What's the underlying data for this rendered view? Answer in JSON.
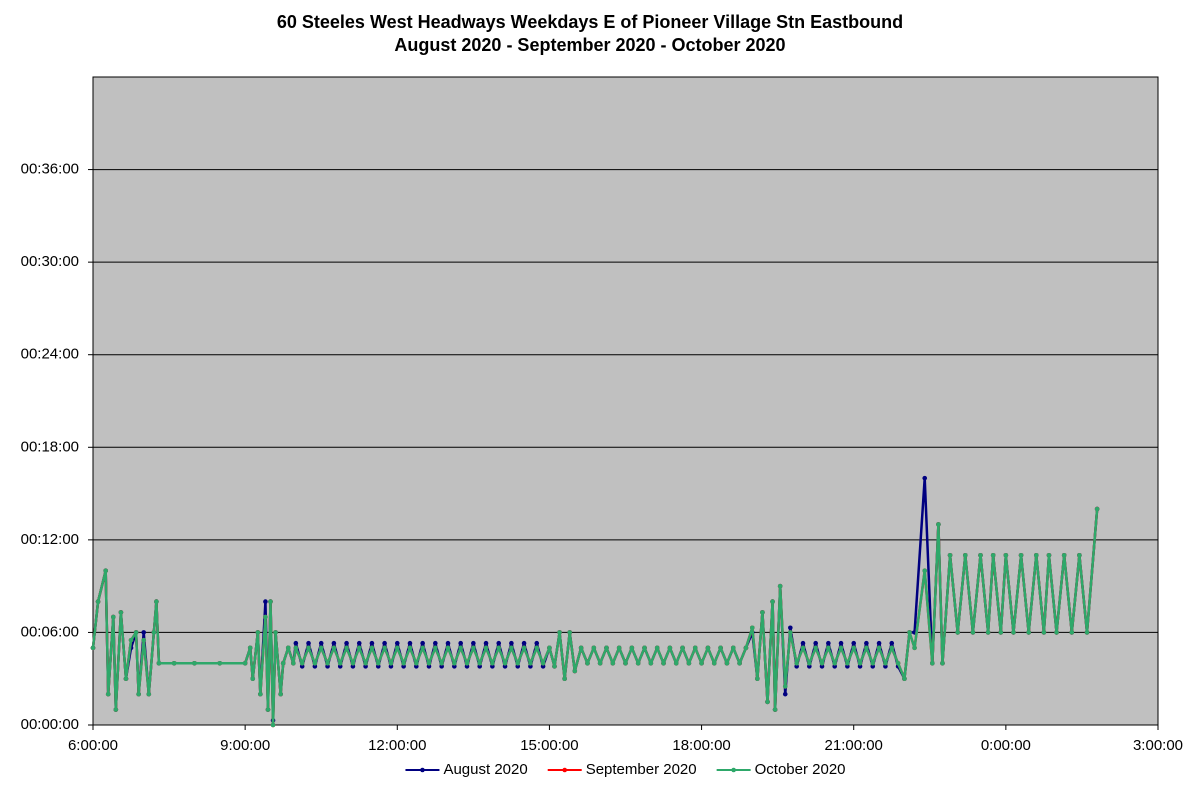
{
  "chart_data": {
    "type": "line",
    "title": "60 Steeles West Headways Weekdays E of Pioneer Village Stn Eastbound",
    "subtitle": "August 2020 - September 2020 - October 2020",
    "x": [
      6.0,
      6.1,
      6.25,
      6.3,
      6.4,
      6.45,
      6.55,
      6.65,
      6.75,
      6.85,
      6.9,
      7.0,
      7.1,
      7.2,
      7.25,
      7.3,
      7.6,
      8.0,
      8.5,
      9.0,
      9.1,
      9.15,
      9.25,
      9.3,
      9.4,
      9.45,
      9.5,
      9.55,
      9.6,
      9.7,
      9.75,
      9.85,
      9.95,
      10,
      10.125,
      10.25,
      10.375,
      10.5,
      10.625,
      10.75,
      10.875,
      11,
      11.125,
      11.25,
      11.375,
      11.5,
      11.625,
      11.75,
      11.875,
      12,
      12.125,
      12.25,
      12.375,
      12.5,
      12.625,
      12.75,
      12.875,
      13,
      13.125,
      13.25,
      13.375,
      13.5,
      13.625,
      13.75,
      13.875,
      14,
      14.125,
      14.25,
      14.375,
      14.5,
      14.625,
      14.75,
      14.875,
      15,
      15.1,
      15.2,
      15.3,
      15.4,
      15.5,
      15.625,
      15.75,
      15.875,
      16,
      16.125,
      16.25,
      16.375,
      16.5,
      16.625,
      16.75,
      16.875,
      17,
      17.125,
      17.25,
      17.375,
      17.5,
      17.625,
      17.75,
      17.875,
      18,
      18.125,
      18.25,
      18.375,
      18.5,
      18.625,
      18.75,
      18.875,
      19,
      19.1,
      19.2,
      19.3,
      19.4,
      19.45,
      19.55,
      19.65,
      19.75,
      19.875,
      20,
      20.125,
      20.25,
      20.375,
      20.5,
      20.625,
      20.75,
      20.875,
      21,
      21.125,
      21.25,
      21.375,
      21.5,
      21.625,
      21.75,
      21.875,
      22,
      22.1,
      22.2,
      22.4,
      22.55,
      22.67,
      22.75,
      22.9,
      23.05,
      23.2,
      23.35,
      23.5,
      23.65,
      23.75,
      23.9,
      24,
      24.15,
      24.3,
      24.45,
      24.6,
      24.75,
      24.85,
      25,
      25.15,
      25.3,
      25.45,
      25.6,
      25.8
    ],
    "series": [
      {
        "name": "August 2020",
        "color": "#000080",
        "values": [
          5,
          8,
          10,
          2,
          7,
          1,
          7.3,
          3,
          5,
          6,
          2,
          6,
          2,
          6,
          8,
          4,
          4,
          4,
          4,
          4,
          5,
          3,
          6,
          2,
          8,
          1,
          8,
          0.3,
          6,
          2,
          4,
          5,
          4,
          5.3,
          3.8,
          5.3,
          3.8,
          5.3,
          3.8,
          5.3,
          3.8,
          5.3,
          3.8,
          5.3,
          3.8,
          5.3,
          3.8,
          5.3,
          3.8,
          5.3,
          3.8,
          5.3,
          3.8,
          5.3,
          3.8,
          5.3,
          3.8,
          5.3,
          3.8,
          5.3,
          3.8,
          5.3,
          3.8,
          5.3,
          3.8,
          5.3,
          3.8,
          5.3,
          3.8,
          5.3,
          3.8,
          5.3,
          3.8,
          5,
          3.8,
          6,
          3,
          6,
          3.5,
          5,
          4,
          5,
          4,
          5,
          4,
          5,
          4,
          5,
          4,
          5,
          4,
          5,
          4,
          5,
          4,
          5,
          4,
          5,
          4,
          5,
          4,
          5,
          4,
          5,
          4,
          5,
          6,
          3,
          7.3,
          1.5,
          8,
          1,
          9,
          2,
          6.3,
          3.8,
          5.3,
          3.8,
          5.3,
          3.8,
          5.3,
          3.8,
          5.3,
          3.8,
          5.3,
          3.8,
          5.3,
          3.8,
          5.3,
          3.8,
          5.3,
          3.8,
          3,
          6,
          6,
          16,
          4,
          13,
          4,
          11,
          6,
          11,
          6,
          11,
          6,
          11,
          6,
          11,
          6,
          11,
          6,
          11,
          6,
          11,
          6,
          11,
          6,
          11,
          6,
          14
        ]
      },
      {
        "name": "September 2020",
        "color": "#ff0000",
        "values": [
          5,
          8,
          10,
          2,
          7,
          1,
          7.3,
          3,
          5.5,
          6,
          2,
          5.5,
          2,
          6,
          8,
          4,
          4,
          4,
          4,
          4,
          5,
          3,
          6,
          2,
          7,
          1,
          8,
          0,
          6,
          2,
          4,
          5,
          4,
          5,
          4,
          5,
          4,
          5,
          4,
          5,
          4,
          5,
          4,
          5,
          4,
          5,
          4,
          5,
          4,
          5,
          4,
          5,
          4,
          5,
          4,
          5,
          4,
          5,
          4,
          5,
          4,
          5,
          4,
          5,
          4,
          5,
          4,
          5,
          4,
          5,
          4,
          5,
          4,
          5,
          3.8,
          6,
          3,
          6,
          3.5,
          5,
          4,
          5,
          4,
          5,
          4,
          5,
          4,
          5,
          4,
          5,
          4,
          5,
          4,
          5,
          4,
          5,
          4,
          5,
          4,
          5,
          4,
          5,
          4,
          5,
          4,
          5,
          6.3,
          3,
          7.3,
          1.5,
          8,
          1,
          9,
          2.5,
          6,
          4,
          5,
          4,
          5,
          4,
          5,
          4,
          5,
          4,
          5,
          4,
          5,
          4,
          5,
          4,
          5,
          4,
          3,
          6,
          5,
          10,
          4,
          13,
          4,
          11,
          6,
          11,
          6,
          11,
          6,
          11,
          6,
          11,
          6,
          11,
          6,
          11,
          6,
          11,
          6,
          11,
          6,
          11,
          6,
          14
        ]
      },
      {
        "name": "October 2020",
        "color": "#2ea86a",
        "values": [
          5,
          8,
          10,
          2,
          7,
          1,
          7.3,
          3,
          5.5,
          6,
          2,
          5.5,
          2,
          6,
          8,
          4,
          4,
          4,
          4,
          4,
          5,
          3,
          6,
          2,
          7,
          1,
          8,
          0,
          6,
          2,
          4,
          5,
          4,
          5,
          4,
          5,
          4,
          5,
          4,
          5,
          4,
          5,
          4,
          5,
          4,
          5,
          4,
          5,
          4,
          5,
          4,
          5,
          4,
          5,
          4,
          5,
          4,
          5,
          4,
          5,
          4,
          5,
          4,
          5,
          4,
          5,
          4,
          5,
          4,
          5,
          4,
          5,
          4,
          5,
          3.8,
          6,
          3,
          6,
          3.5,
          5,
          4,
          5,
          4,
          5,
          4,
          5,
          4,
          5,
          4,
          5,
          4,
          5,
          4,
          5,
          4,
          5,
          4,
          5,
          4,
          5,
          4,
          5,
          4,
          5,
          4,
          5,
          6.3,
          3,
          7.3,
          1.5,
          8,
          1,
          9,
          2.5,
          6,
          4,
          5,
          4,
          5,
          4,
          5,
          4,
          5,
          4,
          5,
          4,
          5,
          4,
          5,
          4,
          5,
          4,
          3,
          6,
          5,
          10,
          4,
          13,
          4,
          11,
          6,
          11,
          6,
          11,
          6,
          11,
          6,
          11,
          6,
          11,
          6,
          11,
          6,
          11,
          6,
          11,
          6,
          11,
          6,
          14
        ]
      }
    ],
    "xlim": [
      6,
      27
    ],
    "xticks": [
      {
        "value": 6,
        "label": "6:00:00"
      },
      {
        "value": 9,
        "label": "9:00:00"
      },
      {
        "value": 12,
        "label": "12:00:00"
      },
      {
        "value": 15,
        "label": "15:00:00"
      },
      {
        "value": 18,
        "label": "18:00:00"
      },
      {
        "value": 21,
        "label": "21:00:00"
      },
      {
        "value": 24,
        "label": "0:00:00"
      },
      {
        "value": 27,
        "label": "3:00:00"
      }
    ],
    "ylim": [
      0,
      42
    ],
    "yticks": [
      {
        "value": 0,
        "label": "00:00:00"
      },
      {
        "value": 6,
        "label": "00:06:00"
      },
      {
        "value": 12,
        "label": "00:12:00"
      },
      {
        "value": 18,
        "label": "00:18:00"
      },
      {
        "value": 24,
        "label": "00:24:00"
      },
      {
        "value": 30,
        "label": "00:30:00"
      },
      {
        "value": 36,
        "label": "00:36:00"
      }
    ],
    "grid": true,
    "legend": "bottom",
    "background": "#c0c0c0"
  }
}
